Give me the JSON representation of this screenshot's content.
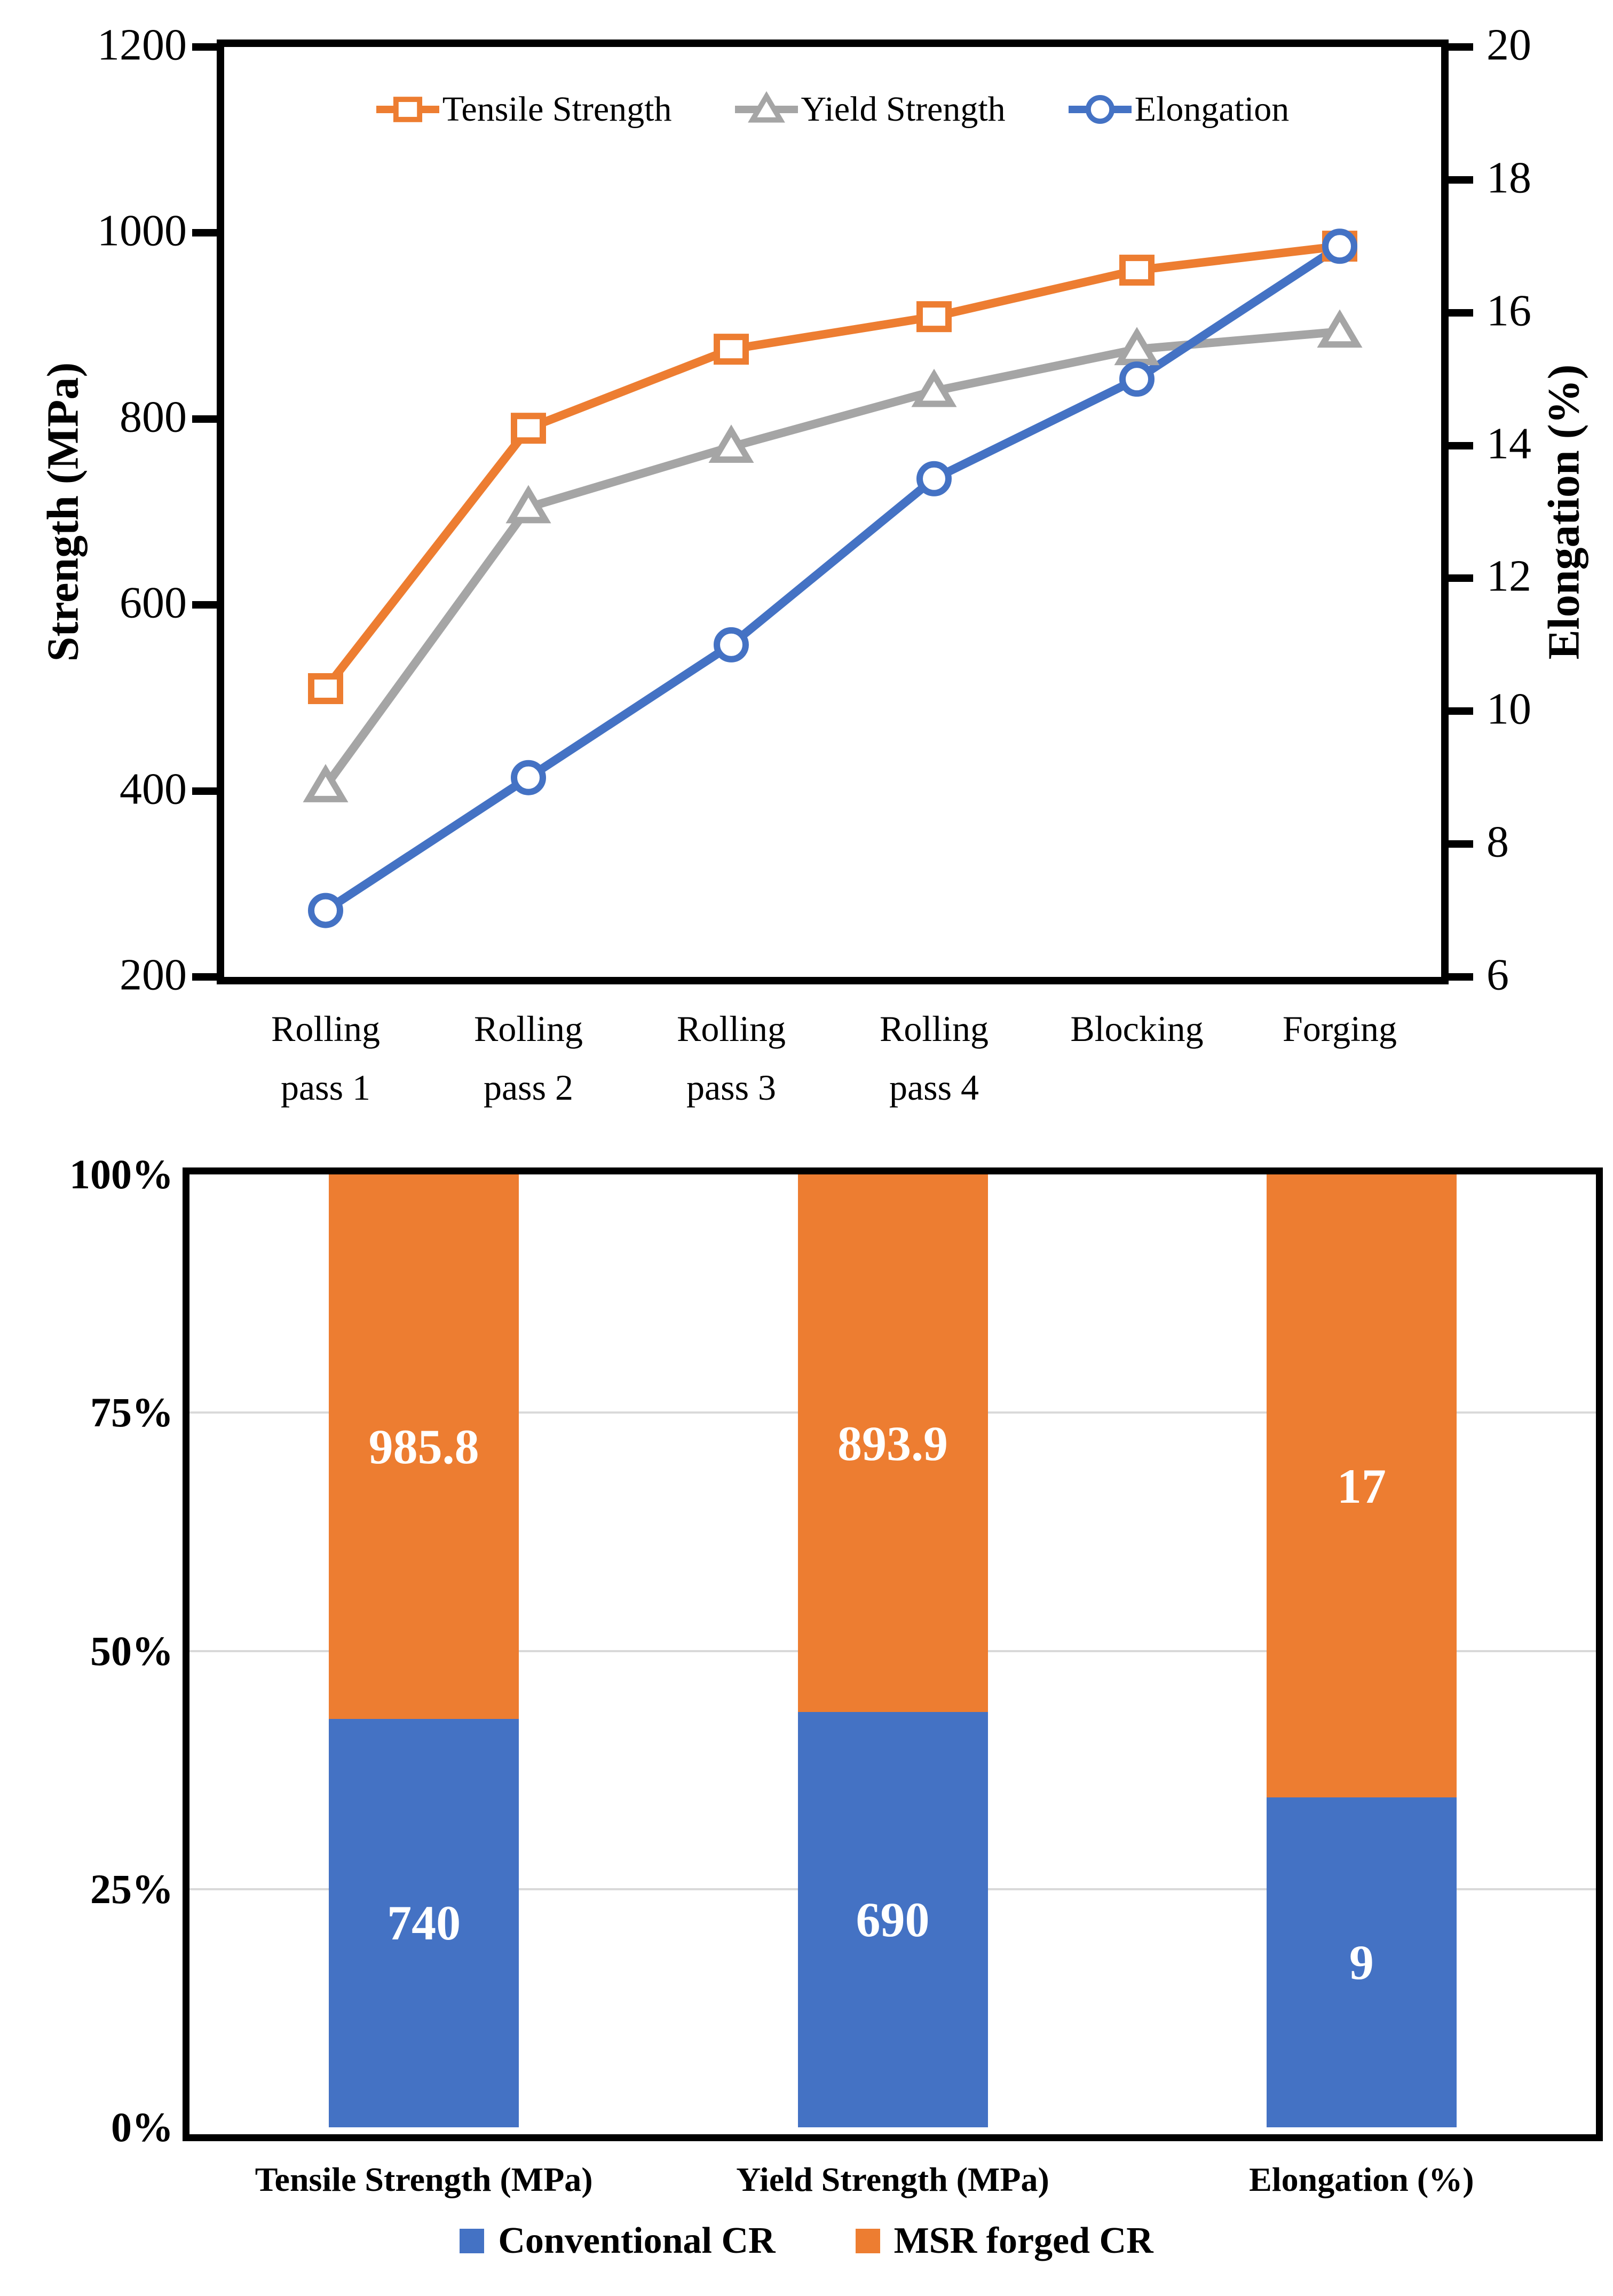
{
  "colors": {
    "tensile": "#ED7D31",
    "yield": "#A5A5A5",
    "elongation": "#4472C4",
    "conventional": "#4472C4",
    "msr": "#ED7D31",
    "gridline": "#D9D9D9",
    "axis": "#000000",
    "bar_value_text": "#FFFFFF"
  },
  "chart_data": [
    {
      "type": "line",
      "title": "",
      "categories": [
        "Rolling pass 1",
        "Rolling pass 2",
        "Rolling pass 3",
        "Rolling pass 4",
        "Blocking",
        "Forging"
      ],
      "categories_lines": [
        [
          "Rolling",
          "pass 1"
        ],
        [
          "Rolling",
          "pass 2"
        ],
        [
          "Rolling",
          "pass 3"
        ],
        [
          "Rolling",
          "pass 4"
        ],
        [
          "Blocking"
        ],
        [
          "Forging"
        ]
      ],
      "series": [
        {
          "name": "Tensile Strength",
          "axis": "left",
          "color": "#ED7D31",
          "marker": "square",
          "values": [
            510,
            790,
            875,
            910,
            960,
            985.8
          ]
        },
        {
          "name": "Yield Strength",
          "axis": "left",
          "color": "#A5A5A5",
          "marker": "triangle",
          "values": [
            405,
            705,
            770,
            830,
            875,
            893.9
          ]
        },
        {
          "name": "Elongation",
          "axis": "right",
          "color": "#4472C4",
          "marker": "circle",
          "values": [
            7,
            9,
            11,
            13.5,
            15,
            17
          ]
        }
      ],
      "left_axis": {
        "label": "Strength (MPa)",
        "min": 200,
        "max": 1200,
        "ticks": [
          1200,
          1000,
          800,
          600,
          400,
          200
        ]
      },
      "right_axis": {
        "label": "Elongation (%)",
        "min": 6,
        "max": 20,
        "ticks": [
          20,
          18,
          16,
          14,
          12,
          10,
          8,
          6
        ]
      },
      "legend_position": "top",
      "grid": false
    },
    {
      "type": "bar",
      "subtype": "stacked-100pct",
      "title": "",
      "categories": [
        "Tensile Strength (MPa)",
        "Yield Strength (MPa)",
        "Elongation (%)"
      ],
      "series": [
        {
          "name": "Conventional CR",
          "color": "#4472C4",
          "values": [
            740,
            690,
            9
          ],
          "labels": [
            "740",
            "690",
            "9"
          ]
        },
        {
          "name": "MSR forged CR",
          "color": "#ED7D31",
          "values": [
            985.8,
            893.9,
            17
          ],
          "labels": [
            "985.8",
            "893.9",
            "17"
          ]
        }
      ],
      "y_axis": {
        "min": 0,
        "max": 100,
        "tick_labels": [
          "100%",
          "75%",
          "50%",
          "25%",
          "0%"
        ],
        "tick_values": [
          100,
          75,
          50,
          25,
          0
        ],
        "gridlines": [
          25,
          50,
          75
        ],
        "gridline_color": "#D9D9D9"
      },
      "legend_position": "bottom"
    }
  ]
}
